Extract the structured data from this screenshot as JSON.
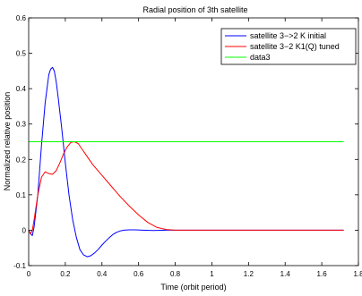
{
  "chart_data": {
    "type": "line",
    "title": "Radial position of 3th satellite",
    "xlabel": "Time (orbit period)",
    "ylabel": "Normalized relative position",
    "xlim": [
      0,
      1.8
    ],
    "ylim": [
      -0.1,
      0.6
    ],
    "xticks": [
      "0",
      "0.2",
      "0.4",
      "0.6",
      "0.8",
      "1",
      "1.2",
      "1.4",
      "1.6",
      "1.8"
    ],
    "yticks": [
      "-0.1",
      "0",
      "0.1",
      "0.2",
      "0.3",
      "0.4",
      "0.5",
      "0.6"
    ],
    "grid": false,
    "legend": "top-right",
    "series": [
      {
        "name": "satellite 3−>2 K initial",
        "color": "#0000ff",
        "x": [
          0,
          0.01,
          0.02,
          0.03,
          0.05,
          0.07,
          0.09,
          0.11,
          0.12,
          0.13,
          0.14,
          0.15,
          0.16,
          0.18,
          0.2,
          0.22,
          0.24,
          0.26,
          0.28,
          0.3,
          0.32,
          0.34,
          0.36,
          0.38,
          0.4,
          0.42,
          0.44,
          0.46,
          0.48,
          0.5,
          0.52,
          0.55,
          0.58,
          0.62,
          0.68,
          0.75,
          0.85,
          1.0,
          1.2,
          1.4,
          1.6,
          1.72
        ],
        "y": [
          0,
          -0.01,
          -0.015,
          0.01,
          0.1,
          0.24,
          0.36,
          0.44,
          0.455,
          0.46,
          0.45,
          0.42,
          0.38,
          0.29,
          0.19,
          0.1,
          0.03,
          -0.02,
          -0.055,
          -0.07,
          -0.075,
          -0.072,
          -0.064,
          -0.054,
          -0.042,
          -0.031,
          -0.021,
          -0.012,
          -0.006,
          -0.002,
          0.0,
          0.001,
          0.001,
          0.0,
          -0.001,
          0.0,
          0.0,
          0.0,
          0.0,
          0.0,
          0.0,
          0.0
        ]
      },
      {
        "name": "satellite 3−2 K1(Q) tuned",
        "color": "#ff0000",
        "x": [
          0,
          0.01,
          0.02,
          0.03,
          0.05,
          0.07,
          0.09,
          0.11,
          0.13,
          0.15,
          0.17,
          0.19,
          0.21,
          0.23,
          0.25,
          0.27,
          0.29,
          0.31,
          0.33,
          0.35,
          0.4,
          0.45,
          0.5,
          0.55,
          0.6,
          0.65,
          0.7,
          0.75,
          0.8,
          0.85,
          0.9,
          1.0,
          1.2,
          1.4,
          1.6,
          1.72
        ],
        "y": [
          0,
          -0.01,
          0.0,
          0.03,
          0.1,
          0.15,
          0.165,
          0.16,
          0.158,
          0.168,
          0.19,
          0.215,
          0.235,
          0.248,
          0.25,
          0.245,
          0.23,
          0.215,
          0.2,
          0.185,
          0.155,
          0.125,
          0.095,
          0.068,
          0.043,
          0.022,
          0.008,
          0.002,
          0.0,
          0.0,
          0.0,
          0.0,
          0.0,
          0.0,
          0.0,
          0.0
        ]
      },
      {
        "name": "data3",
        "color": "#00ff00",
        "x": [
          0,
          1.72
        ],
        "y": [
          0.25,
          0.25
        ]
      }
    ]
  }
}
